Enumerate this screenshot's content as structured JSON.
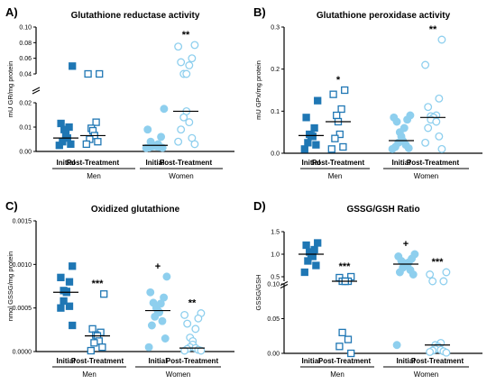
{
  "colors": {
    "men": "#1f77b4",
    "women": "#8ecfee",
    "axis": "#000000"
  },
  "chart_data": [
    {
      "type": "scatter",
      "letter": "A)",
      "title": "Glutathione reductase activity",
      "ylabel": "mU GR/mg protein",
      "break": true,
      "ylim": [
        0,
        0.1
      ],
      "lower_ticks": [
        "0.00",
        "0.01",
        "0.02"
      ],
      "upper_ticks": [
        "0.04",
        "0.06",
        "0.08",
        "0.10"
      ],
      "categories": [
        "Initial",
        "Post-Treatment",
        "Initial",
        "Post-Treatment"
      ],
      "groups": [
        "Men",
        "Women"
      ],
      "series": [
        {
          "group": "Men",
          "condition": "Initial",
          "filled": true,
          "median": 0.0055,
          "values": [
            0.05,
            0.0115,
            0.01,
            0.009,
            0.007,
            0.0055,
            0.004,
            0.003,
            0.0025
          ]
        },
        {
          "group": "Men",
          "condition": "Post-Treatment",
          "filled": false,
          "median": 0.0065,
          "values": [
            0.0215,
            0.0205,
            0.012,
            0.0095,
            0.0085,
            0.0065,
            0.005,
            0.004,
            0.003
          ]
        },
        {
          "group": "Women",
          "condition": "Initial",
          "filled": true,
          "median": 0.0025,
          "values": [
            0.0175,
            0.009,
            0.006,
            0.004,
            0.003,
            0.0025,
            0.0022,
            0.002,
            0.002,
            0.0018,
            0.0016,
            0.0015,
            0.0014
          ]
        },
        {
          "group": "Women",
          "condition": "Post-Treatment",
          "filled": false,
          "median": 0.0165,
          "values": [
            0.077,
            0.075,
            0.06,
            0.055,
            0.051,
            0.0225,
            0.0205,
            0.0165,
            0.014,
            0.012,
            0.009,
            0.0055,
            0.004,
            0.003
          ]
        }
      ],
      "annotations": [
        {
          "position": "women-post",
          "text": "**"
        }
      ]
    },
    {
      "type": "scatter",
      "letter": "B)",
      "title": "Glutathione peroxidase activity",
      "ylabel": "mU GPx/mg protein",
      "break": false,
      "ylim": [
        0,
        0.3
      ],
      "ticks": [
        "0.0",
        "0.1",
        "0.2",
        "0.3"
      ],
      "categories": [
        "Initial",
        "Post-Treatment",
        "Initial",
        "Post-Treatment"
      ],
      "groups": [
        "Men",
        "Women"
      ],
      "series": [
        {
          "group": "Men",
          "condition": "Initial",
          "filled": true,
          "median": 0.042,
          "values": [
            0.125,
            0.085,
            0.06,
            0.045,
            0.042,
            0.04,
            0.025,
            0.02,
            0.01
          ]
        },
        {
          "group": "Men",
          "condition": "Post-Treatment",
          "filled": false,
          "median": 0.075,
          "values": [
            0.15,
            0.14,
            0.105,
            0.09,
            0.075,
            0.045,
            0.035,
            0.015,
            0.01
          ]
        },
        {
          "group": "Women",
          "condition": "Initial",
          "filled": true,
          "median": 0.03,
          "values": [
            0.09,
            0.085,
            0.08,
            0.075,
            0.06,
            0.05,
            0.04,
            0.03,
            0.025,
            0.02,
            0.015,
            0.012,
            0.01
          ]
        },
        {
          "group": "Women",
          "condition": "Post-Treatment",
          "filled": false,
          "median": 0.085,
          "values": [
            0.27,
            0.21,
            0.13,
            0.11,
            0.09,
            0.088,
            0.085,
            0.085,
            0.08,
            0.075,
            0.06,
            0.04,
            0.025,
            0.01
          ]
        }
      ],
      "annotations": [
        {
          "position": "men-post",
          "text": "*"
        },
        {
          "position": "women-post",
          "text": "**"
        }
      ]
    },
    {
      "type": "scatter",
      "letter": "C)",
      "title": "Oxidized glutathione",
      "ylabel": "nmol GSSG/mg protein",
      "break": false,
      "ylim": [
        0,
        0.0015
      ],
      "ticks": [
        "0.0000",
        "0.0005",
        "0.0010",
        "0.0015"
      ],
      "categories": [
        "Initial",
        "Post-Treatment",
        "Initial",
        "Post-Treatment"
      ],
      "groups": [
        "Men",
        "Women"
      ],
      "series": [
        {
          "group": "Men",
          "condition": "Initial",
          "filled": true,
          "median": 0.00068,
          "values": [
            0.00098,
            0.00085,
            0.0008,
            0.0007,
            0.00069,
            0.00068,
            0.00058,
            0.00052,
            0.0005,
            0.0003
          ]
        },
        {
          "group": "Men",
          "condition": "Post-Treatment",
          "filled": false,
          "median": 0.00018,
          "values": [
            0.00066,
            0.00026,
            0.00022,
            0.00019,
            0.00018,
            0.00012,
            0.0001,
            5e-05,
            1e-05
          ]
        },
        {
          "group": "Women",
          "condition": "Initial",
          "filled": true,
          "median": 0.00047,
          "values": [
            0.00086,
            0.00068,
            0.00062,
            0.00056,
            0.00055,
            0.0005,
            0.00047,
            0.00045,
            0.0004,
            0.00035,
            0.0003,
            0.00015,
            5e-05
          ]
        },
        {
          "group": "Women",
          "condition": "Post-Treatment",
          "filled": false,
          "median": 4e-05,
          "values": [
            0.00044,
            0.00042,
            0.00038,
            0.00032,
            0.00026,
            0.00016,
            0.00012,
            8e-05,
            5e-05,
            4e-05,
            3e-05,
            2e-05,
            1e-05,
            1e-05
          ]
        }
      ],
      "annotations": [
        {
          "position": "men-post",
          "text": "***"
        },
        {
          "position": "women-initial",
          "text": "+"
        },
        {
          "position": "women-post",
          "text": "**"
        }
      ]
    },
    {
      "type": "scatter",
      "letter": "D)",
      "title": "GSSG/GSH Ratio",
      "ylabel": "GSSG/GSH",
      "break": true,
      "ylim": [
        0,
        1.5
      ],
      "lower_ticks": [
        "0.00",
        "0.05",
        "0.10"
      ],
      "upper_ticks": [
        "0.5",
        "1.0",
        "1.5"
      ],
      "categories": [
        "Initial",
        "Post-Treatment",
        "Initial",
        "Post-Treatment"
      ],
      "groups": [
        "Men",
        "Women"
      ],
      "series": [
        {
          "group": "Men",
          "condition": "Initial",
          "filled": true,
          "median": 1.0,
          "values": [
            1.25,
            1.2,
            1.1,
            1.05,
            1.0,
            0.95,
            0.85,
            0.75,
            0.6
          ]
        },
        {
          "group": "Men",
          "condition": "Post-Treatment",
          "filled": false,
          "median": 0.105,
          "values": [
            0.5,
            0.48,
            0.112,
            0.11,
            0.108,
            0.105,
            0.03,
            0.02,
            0.01,
            0.0
          ]
        },
        {
          "group": "Women",
          "condition": "Initial",
          "filled": true,
          "median": 0.78,
          "values": [
            1.0,
            0.95,
            0.9,
            0.85,
            0.82,
            0.8,
            0.78,
            0.75,
            0.7,
            0.65,
            0.6,
            0.55,
            0.012
          ]
        },
        {
          "group": "Women",
          "condition": "Post-Treatment",
          "filled": false,
          "median": 0.012,
          "values": [
            0.6,
            0.55,
            0.112,
            0.11,
            0.015,
            0.012,
            0.01,
            0.008,
            0.006,
            0.005,
            0.004,
            0.003,
            0.002,
            0.001
          ]
        }
      ],
      "annotations": [
        {
          "position": "men-post",
          "text": "***"
        },
        {
          "position": "women-initial",
          "text": "+"
        },
        {
          "position": "women-post",
          "text": "***"
        }
      ]
    }
  ]
}
